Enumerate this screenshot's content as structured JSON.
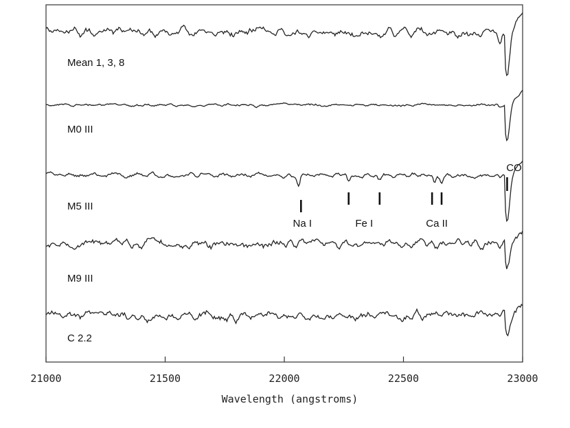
{
  "chart_data": {
    "type": "line",
    "xlabel": "Wavelength (angstroms)",
    "ylabel": "",
    "xlim": [
      21000,
      23000
    ],
    "x_ticks": [
      21000,
      21500,
      22000,
      22500,
      23000
    ],
    "grid": false,
    "legend": "none",
    "series": [
      {
        "name": "Mean 1, 3, 8",
        "noise": 0.55,
        "co_depth": 2.6,
        "pre_dip": 0.9,
        "seed": 11
      },
      {
        "name": "M0 III",
        "noise": 0.18,
        "co_depth": 2.4,
        "pre_dip": 0.3,
        "seed": 23
      },
      {
        "name": "M5 III",
        "noise": 0.3,
        "co_depth": 3.0,
        "pre_dip": 0.4,
        "seed": 37
      },
      {
        "name": "M9 III",
        "noise": 0.55,
        "co_depth": 1.8,
        "pre_dip": 0.7,
        "seed": 51
      },
      {
        "name": "C 2.2",
        "noise": 0.55,
        "co_depth": 1.5,
        "pre_dip": 0.4,
        "seed": 67
      }
    ],
    "line_markers": [
      {
        "label": "Na I",
        "x": [
          22070
        ]
      },
      {
        "label": "Fe I",
        "x": [
          22270,
          22400
        ]
      },
      {
        "label": "Ca II",
        "x": [
          22620,
          22660
        ]
      },
      {
        "label": "CO",
        "x": [
          22935
        ]
      }
    ],
    "absorption_features": [
      {
        "x": 22060,
        "depth": 0.9
      },
      {
        "x": 22270,
        "depth": 0.6
      },
      {
        "x": 22400,
        "depth": 0.4
      },
      {
        "x": 22630,
        "depth": 0.6
      },
      {
        "x": 22660,
        "depth": 0.6
      }
    ]
  }
}
